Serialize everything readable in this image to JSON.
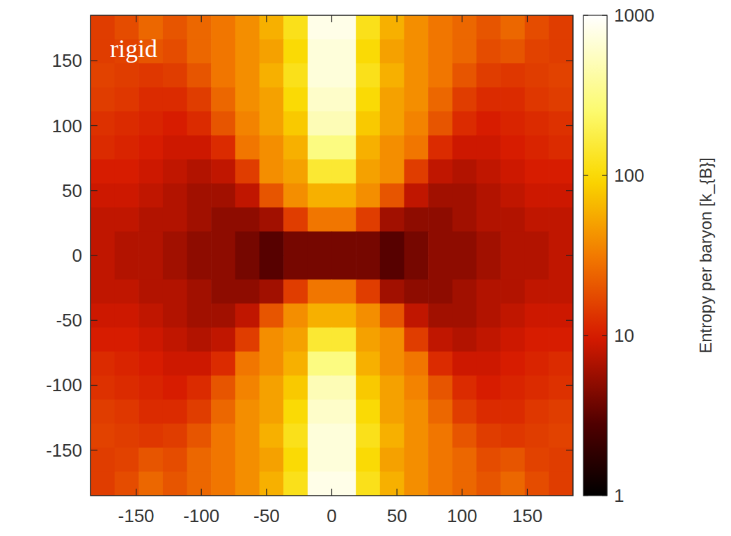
{
  "chart_data": {
    "type": "heatmap",
    "annotations": [
      "rigid"
    ],
    "xlim": [
      -185,
      185
    ],
    "ylim": [
      -185,
      185
    ],
    "xticks": [
      -150,
      -100,
      -50,
      0,
      50,
      100,
      150
    ],
    "yticks": [
      -150,
      -100,
      -50,
      0,
      50,
      100,
      150
    ],
    "x": [
      -175.75,
      -157.25,
      -138.75,
      -120.25,
      -101.75,
      -83.25,
      -64.75,
      -46.25,
      -27.75,
      -9.25,
      9.25,
      27.75,
      46.25,
      64.75,
      83.25,
      101.75,
      120.25,
      138.75,
      157.25,
      175.75
    ],
    "y": [
      175.75,
      157.25,
      138.75,
      120.25,
      101.75,
      83.25,
      64.75,
      46.25,
      27.75,
      9.25,
      -9.25,
      -27.75,
      -46.25,
      -64.75,
      -83.25,
      -101.75,
      -120.25,
      -138.75,
      -157.25,
      -175.75
    ],
    "cells": [
      [
        15,
        18,
        25,
        20,
        25,
        30,
        40,
        60,
        120,
        800,
        800,
        120,
        60,
        40,
        30,
        25,
        20,
        25,
        18,
        15
      ],
      [
        15,
        16,
        20,
        18,
        25,
        30,
        40,
        50,
        100,
        700,
        700,
        100,
        50,
        40,
        30,
        25,
        18,
        20,
        16,
        15
      ],
      [
        16,
        15,
        14,
        15,
        20,
        30,
        40,
        60,
        120,
        700,
        700,
        120,
        60,
        40,
        30,
        20,
        15,
        14,
        15,
        16
      ],
      [
        15,
        14,
        12,
        12,
        15,
        25,
        40,
        50,
        100,
        600,
        600,
        100,
        50,
        40,
        25,
        15,
        12,
        12,
        14,
        15
      ],
      [
        13,
        12,
        11,
        10,
        12,
        20,
        35,
        50,
        80,
        500,
        500,
        80,
        50,
        35,
        20,
        12,
        10,
        11,
        12,
        13
      ],
      [
        12,
        11,
        10,
        9,
        9,
        12,
        30,
        40,
        60,
        300,
        300,
        60,
        40,
        30,
        12,
        9,
        9,
        10,
        11,
        12
      ],
      [
        10,
        10,
        9,
        8,
        7,
        8,
        15,
        40,
        50,
        150,
        150,
        50,
        40,
        15,
        8,
        7,
        8,
        9,
        10,
        10
      ],
      [
        9,
        9,
        8,
        7,
        6,
        6,
        8,
        20,
        40,
        60,
        60,
        40,
        20,
        8,
        6,
        6,
        7,
        8,
        9,
        9
      ],
      [
        8,
        8,
        7,
        7,
        6,
        5,
        5,
        6,
        15,
        30,
        30,
        15,
        6,
        5,
        5,
        6,
        7,
        7,
        8,
        8
      ],
      [
        8,
        7,
        7,
        6,
        5,
        5,
        4,
        3,
        4,
        4,
        4,
        4,
        3,
        4,
        5,
        5,
        6,
        7,
        7,
        8
      ],
      [
        8,
        7,
        7,
        6,
        5,
        5,
        4,
        3,
        4,
        4,
        4,
        4,
        3,
        4,
        5,
        5,
        6,
        7,
        7,
        8
      ],
      [
        8,
        8,
        7,
        7,
        6,
        5,
        5,
        6,
        15,
        30,
        30,
        15,
        6,
        5,
        5,
        6,
        7,
        7,
        8,
        8
      ],
      [
        9,
        9,
        8,
        7,
        6,
        6,
        8,
        20,
        40,
        60,
        60,
        40,
        20,
        8,
        6,
        6,
        7,
        8,
        9,
        9
      ],
      [
        10,
        10,
        9,
        8,
        7,
        8,
        15,
        40,
        50,
        150,
        150,
        50,
        40,
        15,
        8,
        7,
        8,
        9,
        10,
        10
      ],
      [
        12,
        11,
        10,
        9,
        9,
        12,
        30,
        40,
        60,
        300,
        300,
        60,
        40,
        30,
        12,
        9,
        9,
        10,
        11,
        12
      ],
      [
        13,
        12,
        11,
        10,
        12,
        20,
        35,
        50,
        80,
        500,
        500,
        80,
        50,
        35,
        20,
        12,
        10,
        11,
        12,
        13
      ],
      [
        15,
        14,
        12,
        12,
        15,
        25,
        40,
        50,
        100,
        600,
        600,
        100,
        50,
        40,
        25,
        15,
        12,
        12,
        14,
        15
      ],
      [
        16,
        15,
        14,
        15,
        20,
        30,
        40,
        60,
        120,
        700,
        700,
        120,
        60,
        40,
        30,
        20,
        15,
        14,
        15,
        16
      ],
      [
        15,
        16,
        20,
        18,
        25,
        30,
        40,
        50,
        100,
        700,
        700,
        100,
        50,
        40,
        30,
        25,
        18,
        20,
        16,
        15
      ],
      [
        15,
        18,
        25,
        20,
        25,
        30,
        40,
        60,
        120,
        800,
        800,
        120,
        60,
        40,
        30,
        25,
        20,
        25,
        18,
        15
      ]
    ],
    "colorbar": {
      "label": "Entropy per baryon [k_{B}]",
      "range": [
        1,
        1000
      ],
      "ticks": [
        1,
        10,
        100,
        1000
      ],
      "log": true
    }
  }
}
